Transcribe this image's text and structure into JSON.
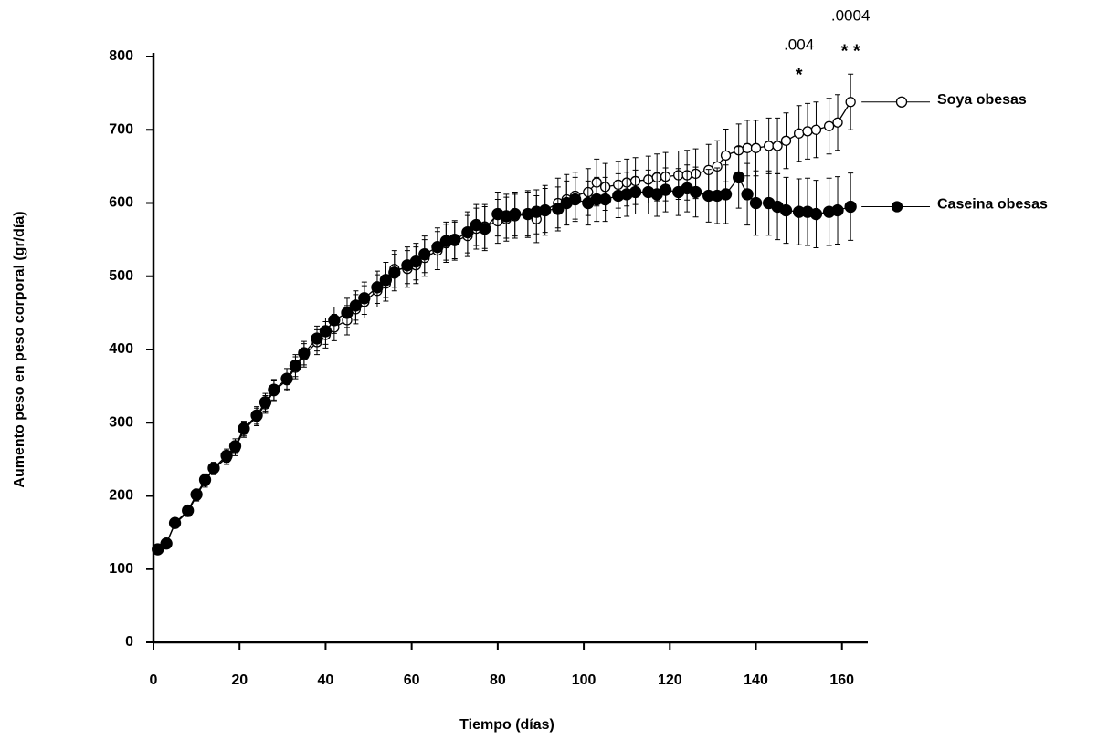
{
  "chart_data": {
    "type": "line",
    "x_label": "Tiempo (días)",
    "y_label": "Aumento peso  en peso  corporal (gr/día)",
    "x": [
      1,
      3,
      5,
      8,
      10,
      12,
      14,
      17,
      19,
      21,
      24,
      26,
      28,
      31,
      33,
      35,
      38,
      40,
      42,
      45,
      47,
      49,
      52,
      54,
      56,
      59,
      61,
      63,
      66,
      68,
      70,
      73,
      75,
      77,
      80,
      82,
      84,
      87,
      89,
      91,
      94,
      96,
      98,
      101,
      103,
      105,
      108,
      110,
      112,
      115,
      117,
      119,
      122,
      124,
      126,
      129,
      131,
      133,
      136,
      138,
      140,
      143,
      145,
      147,
      150,
      152,
      154,
      157,
      159,
      162
    ],
    "series": [
      {
        "name": "Soya obesas",
        "color": "#000000",
        "marker": "open",
        "values": [
          128,
          135,
          162,
          178,
          200,
          220,
          237,
          252,
          265,
          290,
          308,
          325,
          343,
          358,
          375,
          392,
          410,
          420,
          430,
          440,
          455,
          465,
          480,
          490,
          510,
          510,
          515,
          525,
          535,
          545,
          548,
          555,
          565,
          568,
          575,
          578,
          582,
          585,
          578,
          590,
          600,
          605,
          610,
          615,
          628,
          622,
          625,
          628,
          630,
          632,
          635,
          636,
          638,
          638,
          640,
          645,
          650,
          665,
          672,
          675,
          675,
          678,
          678,
          685,
          695,
          698,
          700,
          705,
          710,
          738
        ],
        "errors": [
          5,
          5,
          6,
          6,
          7,
          8,
          8,
          9,
          10,
          10,
          12,
          12,
          14,
          14,
          15,
          16,
          17,
          18,
          18,
          20,
          20,
          22,
          22,
          24,
          25,
          25,
          25,
          25,
          26,
          26,
          26,
          28,
          28,
          30,
          30,
          30,
          30,
          32,
          32,
          34,
          34,
          34,
          32,
          32,
          32,
          32,
          32,
          32,
          32,
          32,
          32,
          33,
          33,
          34,
          34,
          35,
          35,
          36,
          36,
          38,
          38,
          38,
          38,
          38,
          38,
          38,
          38,
          38,
          38,
          38
        ]
      },
      {
        "name": "Caseina obesas",
        "color": "#000000",
        "marker": "filled",
        "values": [
          127,
          135,
          163,
          180,
          202,
          222,
          238,
          255,
          268,
          292,
          310,
          328,
          345,
          360,
          378,
          395,
          415,
          425,
          440,
          450,
          460,
          470,
          485,
          495,
          505,
          515,
          520,
          530,
          540,
          548,
          550,
          560,
          570,
          565,
          585,
          582,
          585,
          585,
          588,
          590,
          592,
          600,
          605,
          600,
          605,
          605,
          610,
          612,
          615,
          615,
          612,
          618,
          615,
          620,
          615,
          610,
          610,
          612,
          635,
          612,
          600,
          600,
          595,
          590,
          588,
          588,
          585,
          588,
          590,
          595
        ],
        "errors": [
          5,
          5,
          6,
          6,
          7,
          8,
          8,
          9,
          10,
          10,
          12,
          12,
          14,
          14,
          15,
          16,
          17,
          18,
          18,
          20,
          20,
          22,
          22,
          24,
          25,
          25,
          25,
          25,
          26,
          26,
          26,
          28,
          28,
          30,
          30,
          30,
          30,
          30,
          30,
          30,
          30,
          30,
          30,
          30,
          30,
          30,
          30,
          30,
          30,
          30,
          30,
          30,
          32,
          32,
          34,
          36,
          38,
          40,
          42,
          42,
          44,
          44,
          45,
          45,
          45,
          46,
          46,
          46,
          46,
          46
        ]
      }
    ],
    "xlim": [
      0,
      166
    ],
    "xticks": [
      0,
      20,
      40,
      60,
      80,
      100,
      120,
      140,
      160
    ],
    "ylim": [
      0,
      800
    ],
    "yticks": [
      0,
      100,
      200,
      300,
      400,
      500,
      600,
      700,
      800
    ],
    "annotations": [
      {
        "x": 150,
        "label": ".004"
      },
      {
        "x": 150,
        "label": "*"
      },
      {
        "x": 162,
        "label": ".0004"
      },
      {
        "x": 162,
        "label": "* *"
      }
    ]
  }
}
